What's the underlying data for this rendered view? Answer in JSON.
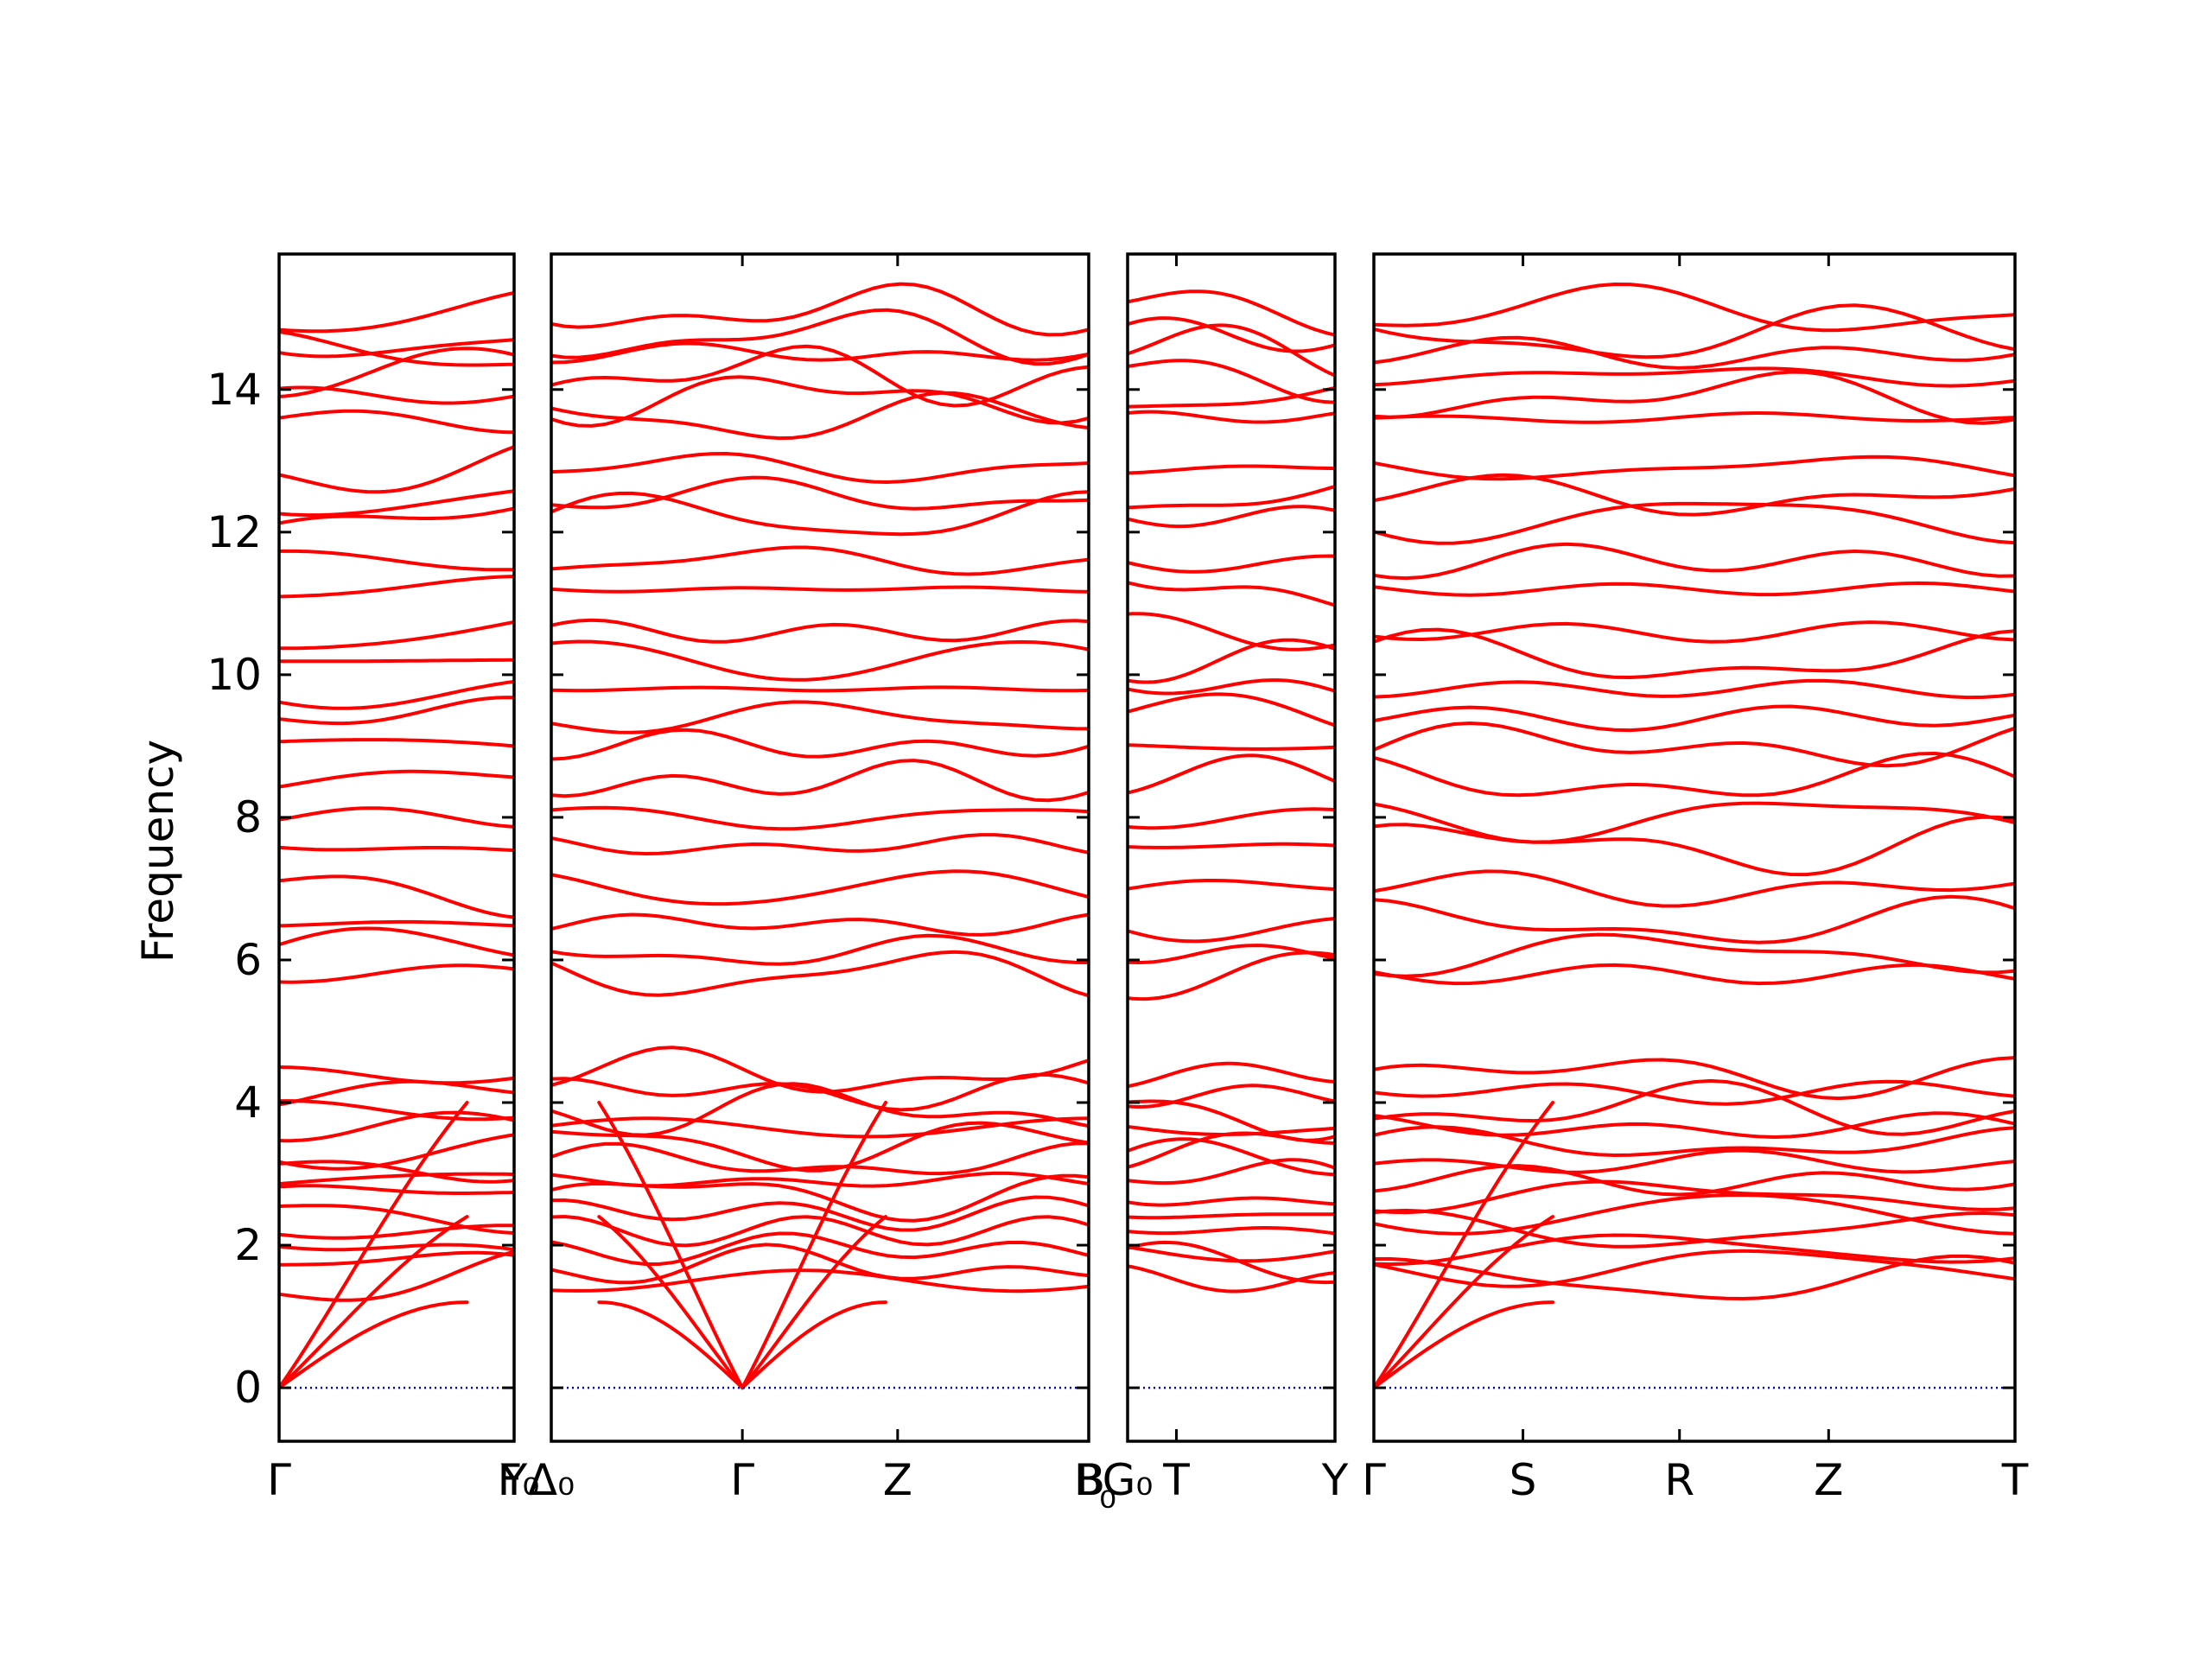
{
  "chart_data": {
    "type": "line",
    "title": "",
    "ylabel": "Frequency",
    "ylim": [
      -0.75,
      15.9
    ],
    "yticks": [
      0,
      2,
      4,
      6,
      8,
      10,
      12,
      14
    ],
    "grid": false,
    "legend": "none",
    "colors": {
      "bands": "#ff0000",
      "zero_line": "#0000cc",
      "axes": "#000000"
    },
    "panels": [
      {
        "x_length": 1.5,
        "tick_positions": [
          0,
          1.5
        ],
        "tick_labels": [
          "Γ",
          "Y"
        ]
      },
      {
        "x_length": 4.5,
        "tick_positions": [
          0,
          1.6,
          2.9,
          4.5
        ],
        "tick_labels": [
          "Δ₀",
          "Γ",
          "Z",
          "B"
        ]
      },
      {
        "x_length": 1.7,
        "tick_positions": [
          0,
          0.4,
          1.7
        ],
        "tick_labels": [
          "G₀",
          "T",
          "Y"
        ]
      },
      {
        "x_length": 4.3,
        "tick_positions": [
          0,
          1.0,
          2.05,
          3.05,
          4.3
        ],
        "tick_labels": [
          "Γ",
          "S",
          "R",
          "Z",
          "T"
        ]
      }
    ],
    "boundary_labels": [
      {
        "text": "F₀"
      },
      {
        "text": "B"
      },
      {
        "text": "₀"
      }
    ],
    "band_levels_sample": [
      1.5,
      1.7,
      1.95,
      2.2,
      2.45,
      2.7,
      2.9,
      3.15,
      3.4,
      3.65,
      3.9,
      4.15,
      4.4,
      5.8,
      6.1,
      6.5,
      7.0,
      7.6,
      8.0,
      8.5,
      9.0,
      9.4,
      9.8,
      10.2,
      10.6,
      11.2,
      11.6,
      12.2,
      12.5,
      12.9,
      13.6,
      13.9,
      14.2,
      14.5,
      14.75,
      15.1
    ]
  }
}
